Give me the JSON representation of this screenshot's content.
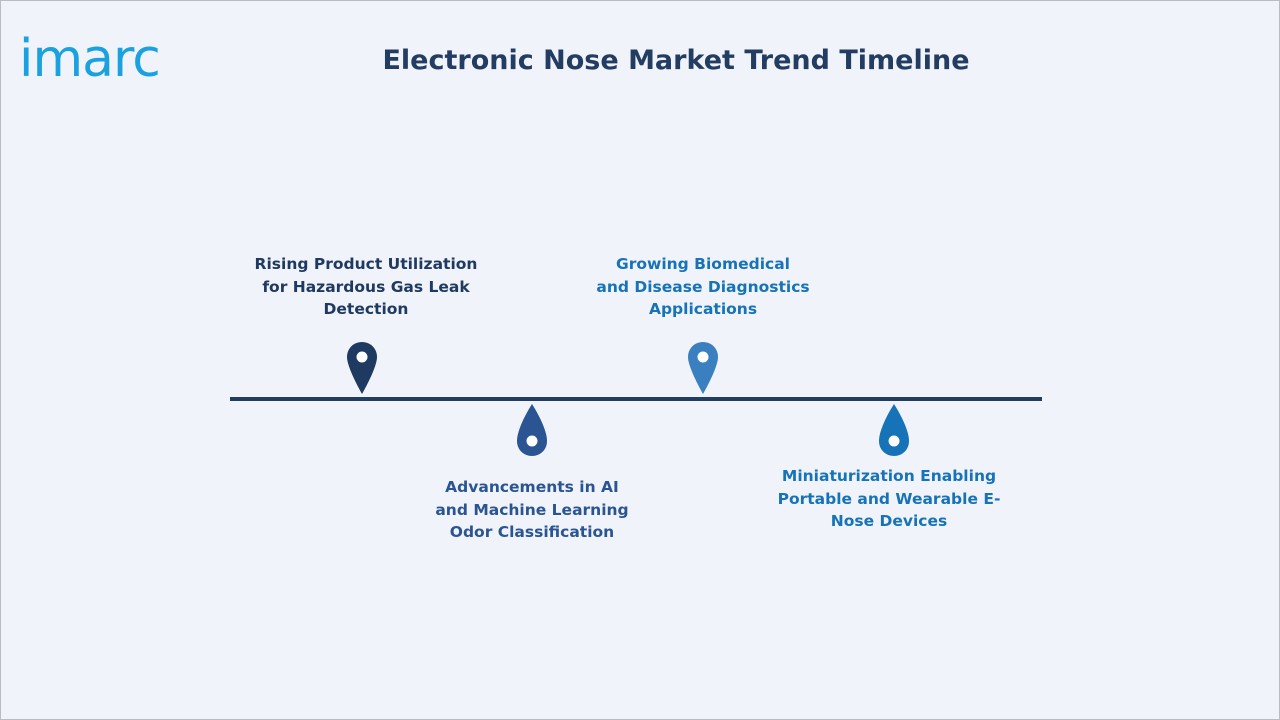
{
  "logo": {
    "text": "imarc",
    "color": "#1aa1e0"
  },
  "title": "Electronic Nose Market Trend Timeline",
  "timeline": {
    "line_color": "#233c62",
    "milestones": [
      {
        "label": "Rising Product Utilization\nfor Hazardous Gas Leak\nDetection",
        "position": "above",
        "icon": "map-pin-icon",
        "color": "#1f3a60"
      },
      {
        "label": "Advancements in AI\nand Machine Learning\nOdor Classification",
        "position": "below",
        "icon": "drop-pin-icon",
        "color": "#2a5592"
      },
      {
        "label": "Growing Biomedical\nand Disease Diagnostics\nApplications",
        "position": "above",
        "icon": "map-pin-icon",
        "color": "#3a80c0"
      },
      {
        "label": "Miniaturization Enabling\nPortable and Wearable E-\nNose Devices",
        "position": "below",
        "icon": "drop-pin-icon",
        "color": "#1673b8"
      }
    ]
  }
}
